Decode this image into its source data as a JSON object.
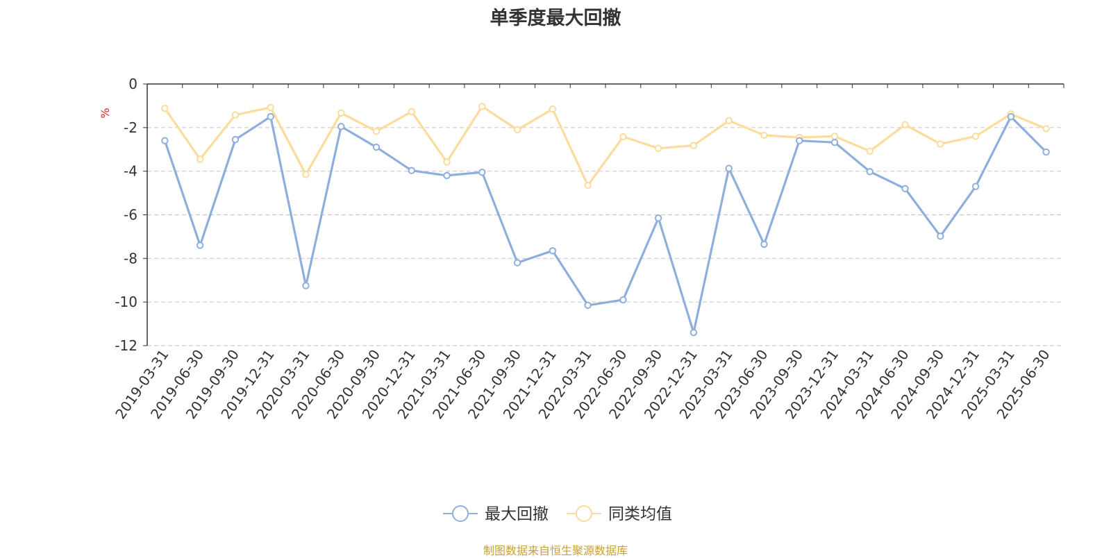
{
  "chart_data": {
    "type": "line",
    "title": "单季度最大回撤",
    "ylabel": "%",
    "ylim": [
      -12,
      0
    ],
    "yticks": [
      0,
      -2,
      -4,
      -6,
      -8,
      -10,
      -12
    ],
    "grid": true,
    "legend_position": "bottom-center",
    "categories": [
      "2019-03-31",
      "2019-06-30",
      "2019-09-30",
      "2019-12-31",
      "2020-03-31",
      "2020-06-30",
      "2020-09-30",
      "2020-12-31",
      "2021-03-31",
      "2021-06-30",
      "2021-09-30",
      "2021-12-31",
      "2022-03-31",
      "2022-06-30",
      "2022-09-30",
      "2022-12-31",
      "2023-03-31",
      "2023-06-30",
      "2023-09-30",
      "2023-12-31",
      "2024-03-31",
      "2024-06-30",
      "2024-09-30",
      "2024-12-31",
      "2025-03-31",
      "2025-06-30"
    ],
    "series": [
      {
        "name": "最大回撤",
        "color": "#8eaedc",
        "values": [
          -2.6,
          -7.4,
          -2.55,
          -1.5,
          -9.25,
          -1.95,
          -2.9,
          -3.97,
          -4.2,
          -4.05,
          -8.2,
          -7.65,
          -10.15,
          -9.9,
          -6.15,
          -11.4,
          -3.87,
          -7.35,
          -2.6,
          -2.68,
          -4.02,
          -4.8,
          -6.98,
          -4.7,
          -1.5,
          -3.12
        ]
      },
      {
        "name": "同类均值",
        "color": "#fbdc9c",
        "values": [
          -1.12,
          -3.45,
          -1.42,
          -1.08,
          -4.15,
          -1.33,
          -2.17,
          -1.27,
          -3.58,
          -1.03,
          -2.1,
          -1.15,
          -4.65,
          -2.42,
          -2.95,
          -2.82,
          -1.68,
          -2.35,
          -2.45,
          -2.4,
          -3.08,
          -1.87,
          -2.75,
          -2.4,
          -1.38,
          -2.05
        ]
      }
    ]
  },
  "source_text": "制图数据来自恒生聚源数据库"
}
